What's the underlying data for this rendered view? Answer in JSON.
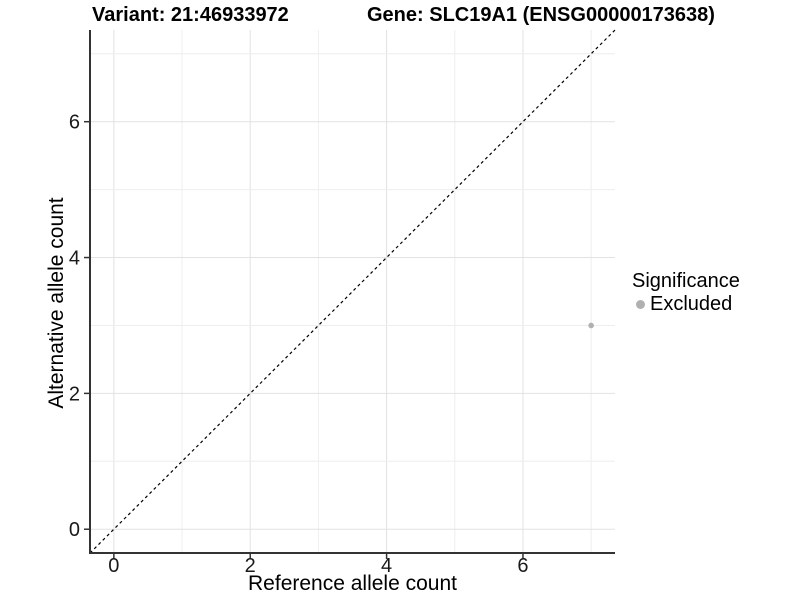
{
  "chart_data": {
    "type": "scatter",
    "title_left": "Variant: 21:46933972",
    "title_right": "Gene: SLC19A1 (ENSG00000173638)",
    "xlabel": "Reference allele count",
    "ylabel": "Alternative allele count",
    "xlim": [
      -0.35,
      7.35
    ],
    "ylim": [
      -0.35,
      7.35
    ],
    "x_ticks": [
      0,
      2,
      4,
      6
    ],
    "y_ticks": [
      0,
      2,
      4,
      6
    ],
    "grid": true,
    "grid_interval": 1,
    "series": [
      {
        "name": "Excluded",
        "color": "#b0b0b0",
        "points": [
          {
            "x": 7,
            "y": 3
          }
        ]
      }
    ],
    "identity_line": {
      "type": "y=x",
      "style": "dashed",
      "color": "#000000"
    },
    "legend": {
      "title": "Significance",
      "position": "right",
      "entries": [
        {
          "label": "Excluded",
          "color": "#b0b0b0"
        }
      ]
    }
  }
}
